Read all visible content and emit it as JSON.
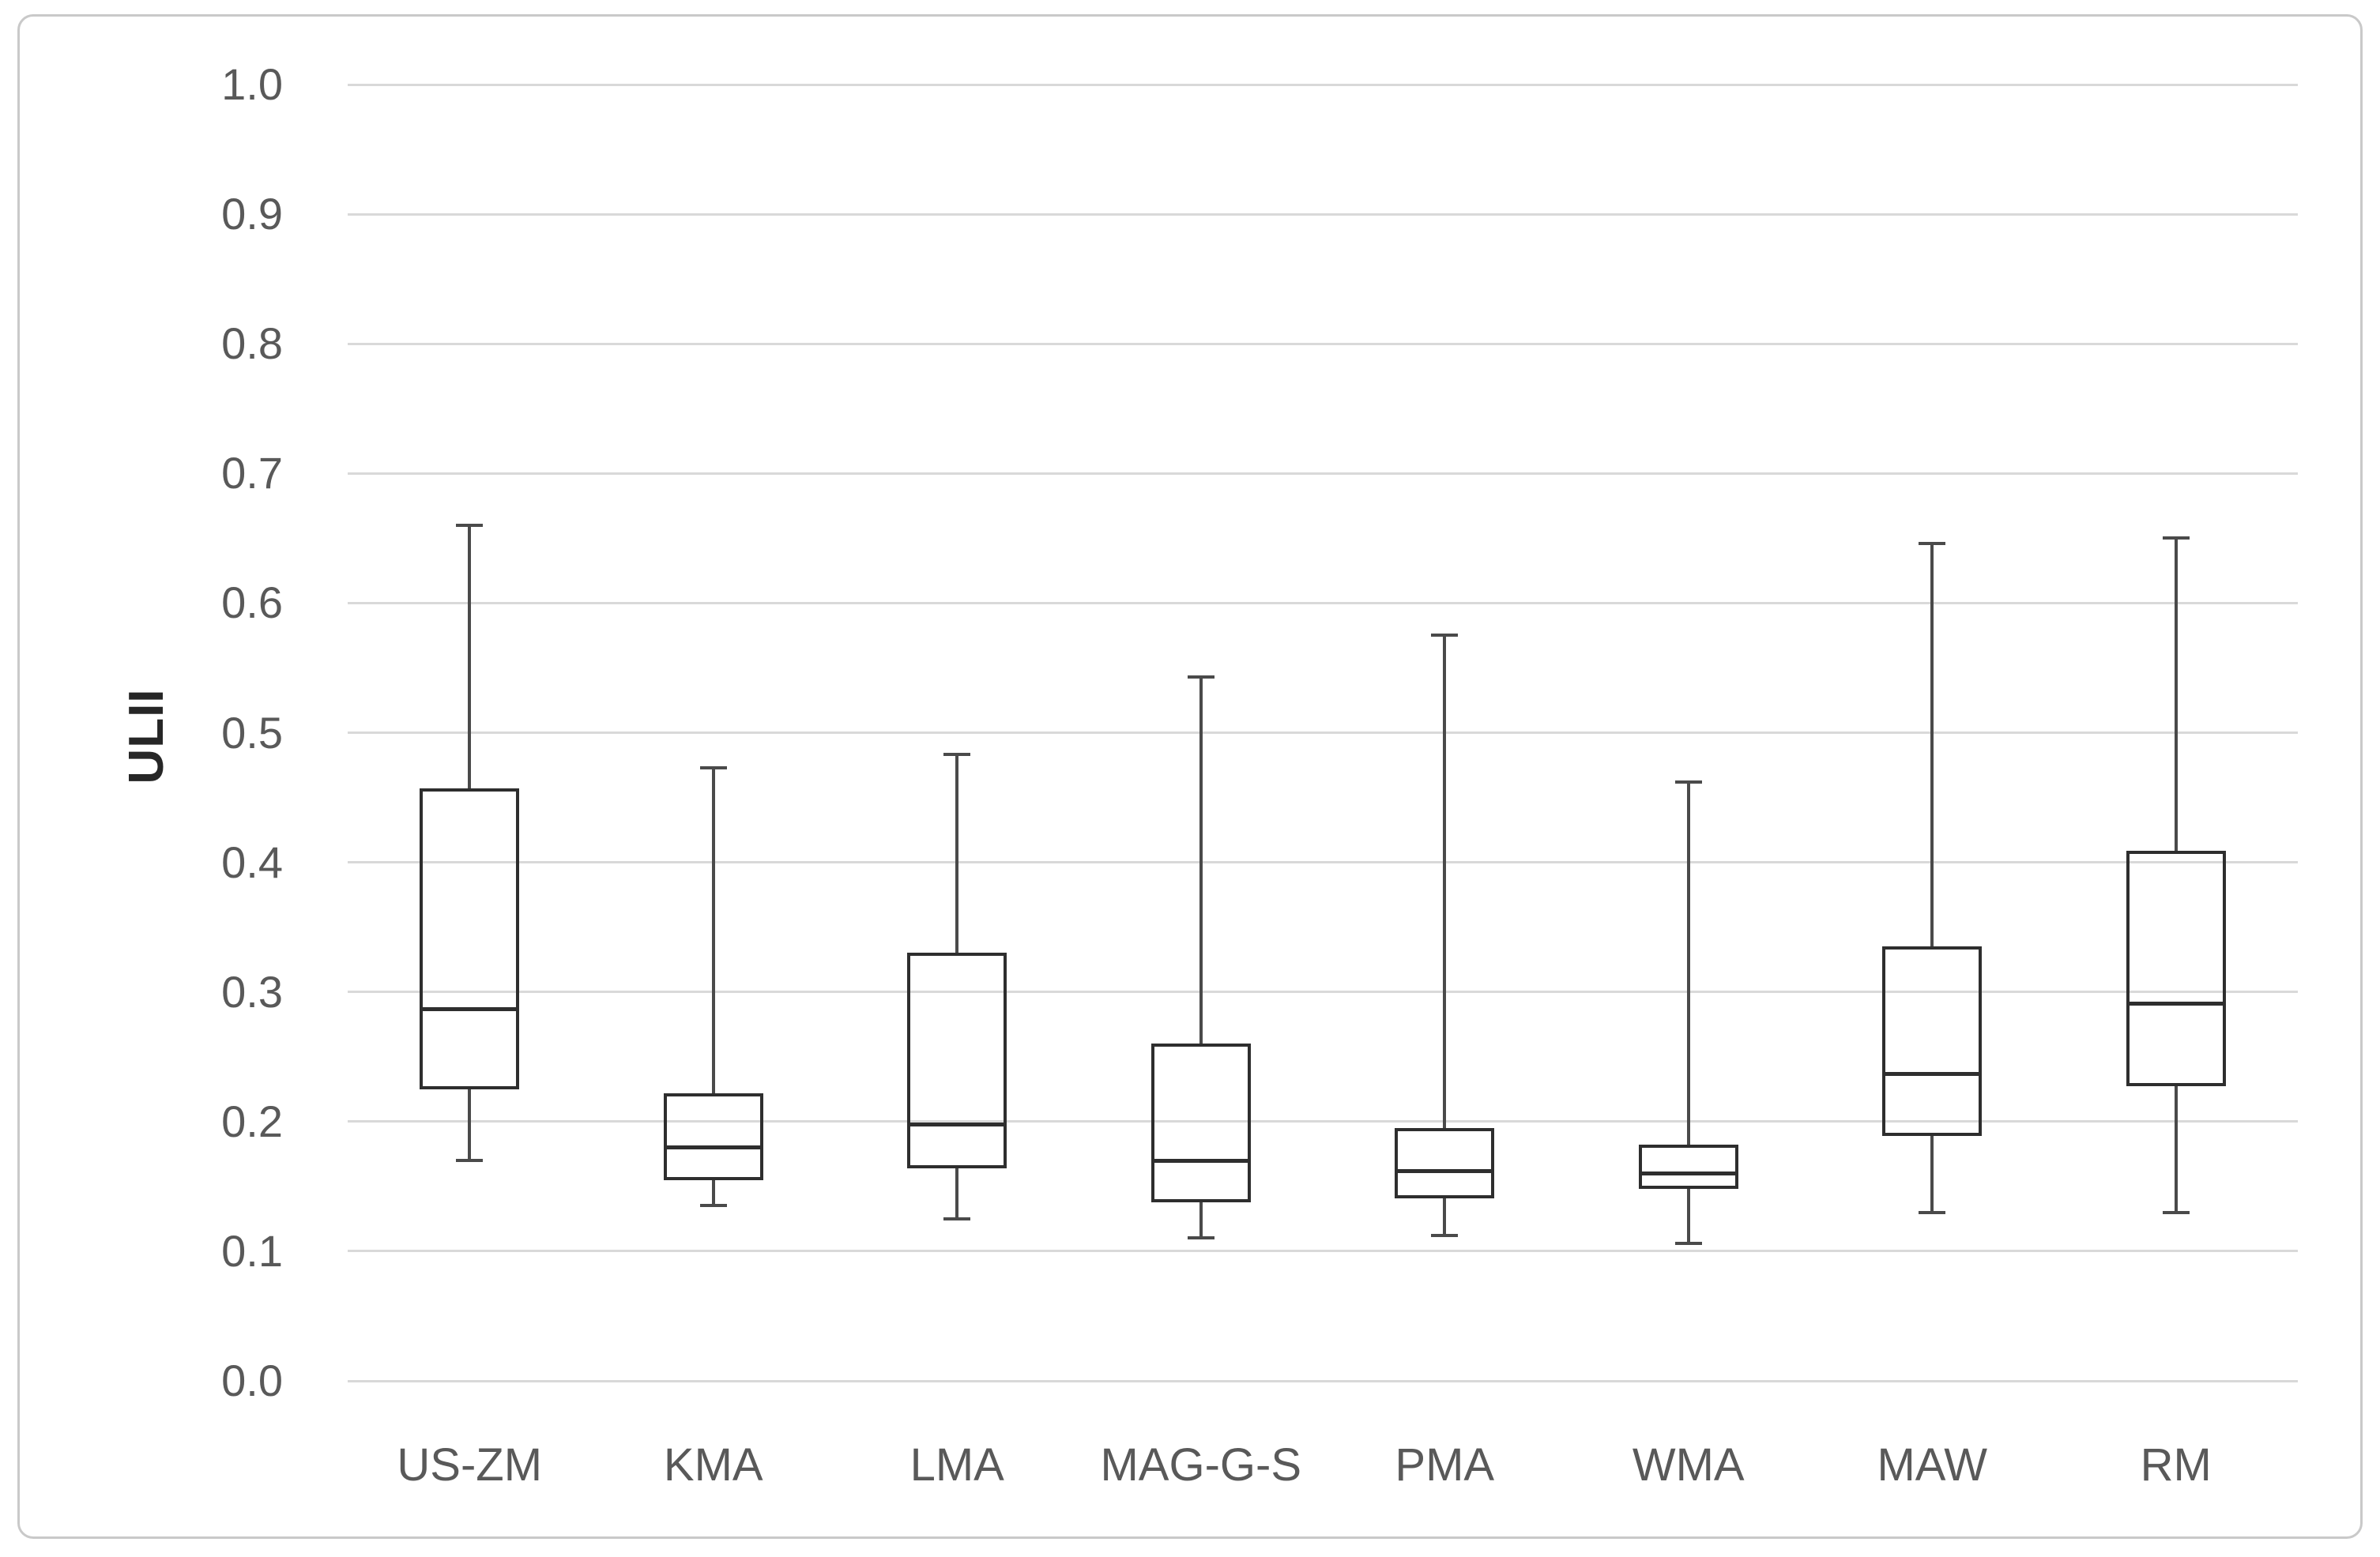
{
  "chart_data": {
    "type": "boxplot",
    "title": "",
    "xlabel": "",
    "ylabel": "ULII",
    "ylim": [
      0.0,
      1.0
    ],
    "y_tick_step": 0.1,
    "y_tick_labels": [
      "0.0",
      "0.1",
      "0.2",
      "0.3",
      "0.4",
      "0.5",
      "0.6",
      "0.7",
      "0.8",
      "0.9",
      "1.0"
    ],
    "grid": "horizontal",
    "legend": "none",
    "categories": [
      "US-ZM",
      "KMA",
      "LMA",
      "MAG-G-S",
      "PMA",
      "WMA",
      "MAW",
      "RM"
    ],
    "series": [
      {
        "name": "US-ZM",
        "min": 0.17,
        "q1": 0.225,
        "median": 0.287,
        "q3": 0.457,
        "max": 0.66
      },
      {
        "name": "KMA",
        "min": 0.135,
        "q1": 0.155,
        "median": 0.18,
        "q3": 0.222,
        "max": 0.473
      },
      {
        "name": "LMA",
        "min": 0.125,
        "q1": 0.164,
        "median": 0.198,
        "q3": 0.33,
        "max": 0.483
      },
      {
        "name": "MAG-G-S",
        "min": 0.11,
        "q1": 0.138,
        "median": 0.17,
        "q3": 0.26,
        "max": 0.543
      },
      {
        "name": "PMA",
        "min": 0.112,
        "q1": 0.141,
        "median": 0.162,
        "q3": 0.195,
        "max": 0.575
      },
      {
        "name": "WMA",
        "min": 0.106,
        "q1": 0.148,
        "median": 0.16,
        "q3": 0.182,
        "max": 0.462
      },
      {
        "name": "MAW",
        "min": 0.13,
        "q1": 0.189,
        "median": 0.237,
        "q3": 0.335,
        "max": 0.646
      },
      {
        "name": "RM",
        "min": 0.13,
        "q1": 0.227,
        "median": 0.291,
        "q3": 0.409,
        "max": 0.65
      }
    ]
  },
  "colors": {
    "background": "#ffffff",
    "frame_border": "#c9c9c9",
    "gridline": "#d9d9d9",
    "tick_label": "#595959",
    "axis_title": "#262626",
    "box_outline": "#2e2e2e",
    "whisker": "#4a4a4a"
  }
}
